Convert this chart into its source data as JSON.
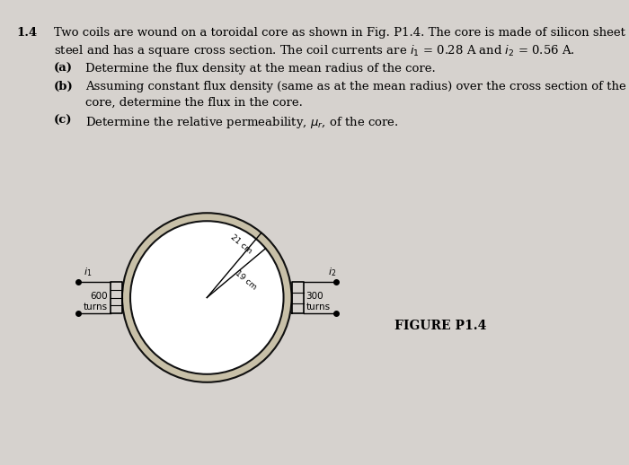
{
  "bg_color": "#d6d2ce",
  "text_color": "#000000",
  "problem_number": "1.4",
  "line1": "Two coils are wound on a toroidal core as shown in Fig. P1.4. The core is made of silicon sheet",
  "line2": "steel and has a square cross section. The coil currents are $i_1$ = 0.28 A and $i_2$ = 0.56 A.",
  "part_a_label": "(a)",
  "part_a_text": "Determine the flux density at the mean radius of the core.",
  "part_b_label": "(b)",
  "part_b_line1": "Assuming constant flux density (same as at the mean radius) over the cross section of the",
  "part_b_line2": "core, determine the flux in the core.",
  "part_c_label": "(c)",
  "part_c_text": "Determine the relative permeability, $\\mu_r$, of the core.",
  "figure_label": "FIGURE P1.4",
  "ring_color": "#c8c0a8",
  "ring_edge_color": "#111111",
  "dim_21cm": "21 cm",
  "dim_19cm": "19 cm",
  "label_i1": "$i_1$",
  "label_i2": "$i_2$",
  "label_600": "600\nturns",
  "label_300": "300\nturns"
}
